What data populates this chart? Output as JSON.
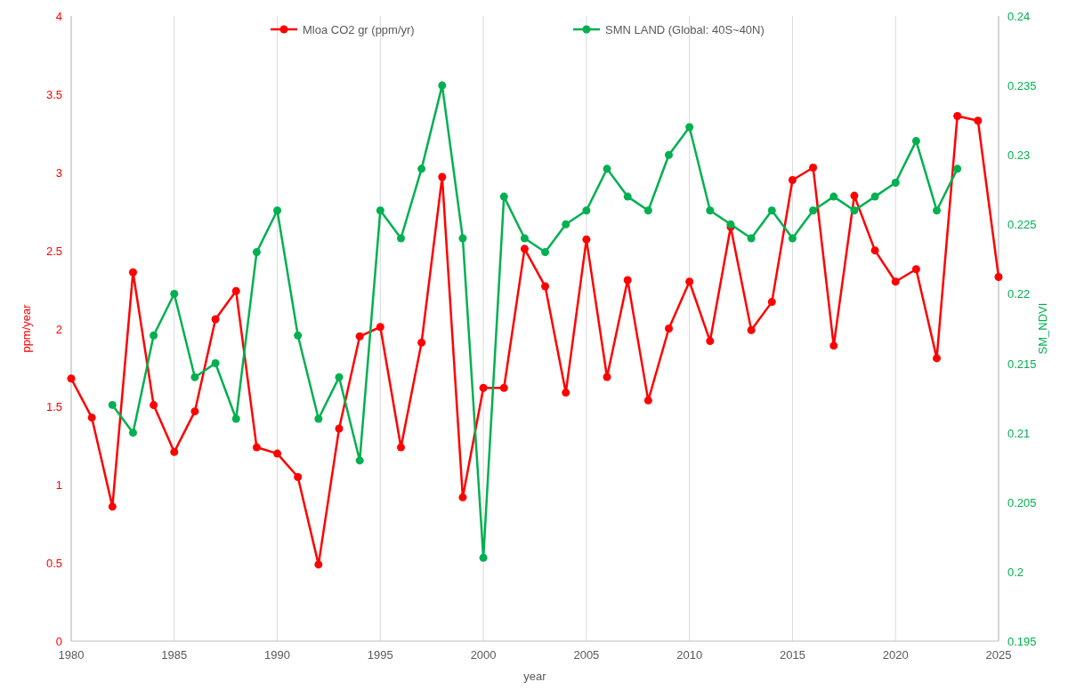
{
  "chart_data": {
    "type": "line",
    "xlabel": "year",
    "ylabel": "ppm/year",
    "y2label": "SM_NDVI",
    "xlim": [
      1980,
      2025
    ],
    "xticks": [
      1980,
      1985,
      1990,
      1995,
      2000,
      2005,
      2010,
      2015,
      2020,
      2025
    ],
    "ylim": [
      0,
      4
    ],
    "yticks": [
      0,
      0.5,
      1,
      1.5,
      2,
      2.5,
      3,
      3.5,
      4
    ],
    "y2lim": [
      0.195,
      0.24
    ],
    "y2ticks": [
      0.195,
      0.2,
      0.205,
      0.21,
      0.215,
      0.22,
      0.225,
      0.23,
      0.235,
      0.24
    ],
    "grid": "x",
    "legend": "top",
    "marker": "circle",
    "line_style": "solid",
    "series": [
      {
        "name": "Mloa CO2 gr (ppm/yr)",
        "color": "#ff0000",
        "x": [
          1980,
          1981,
          1982,
          1983,
          1984,
          1985,
          1986,
          1987,
          1988,
          1989,
          1990,
          1991,
          1992,
          1993,
          1994,
          1995,
          1996,
          1997,
          1998,
          1999,
          2000,
          2001,
          2002,
          2003,
          2004,
          2005,
          2006,
          2007,
          2008,
          2009,
          2010,
          2011,
          2012,
          2013,
          2014,
          2015,
          2016,
          2017,
          2018,
          2019,
          2020,
          2021,
          2022,
          2023,
          2024,
          2025
        ],
        "values": [
          1.68,
          1.43,
          0.86,
          2.36,
          1.51,
          1.21,
          1.47,
          2.06,
          2.24,
          1.24,
          1.2,
          1.05,
          0.49,
          1.36,
          1.95,
          2.01,
          1.24,
          1.91,
          2.97,
          0.92,
          1.62,
          1.62,
          2.51,
          2.27,
          1.59,
          2.57,
          1.69,
          2.31,
          1.54,
          2.0,
          2.3,
          1.92,
          2.65,
          1.99,
          2.17,
          2.95,
          3.03,
          1.89,
          2.85,
          2.5,
          2.3,
          2.38,
          1.81,
          3.36,
          3.33,
          2.33
        ]
      },
      {
        "name": "SMN LAND (Global: 40S~40N)",
        "color": "#00b050",
        "axis": "y2",
        "x": [
          1982,
          1983,
          1984,
          1985,
          1986,
          1987,
          1988,
          1989,
          1990,
          1991,
          1992,
          1993,
          1994,
          1995,
          1996,
          1997,
          1998,
          1999,
          2000,
          2001,
          2002,
          2003,
          2004,
          2005,
          2006,
          2007,
          2008,
          2009,
          2010,
          2011,
          2012,
          2013,
          2014,
          2015,
          2016,
          2017,
          2018,
          2019,
          2020,
          2021,
          2022,
          2023
        ],
        "values": [
          0.212,
          0.21,
          0.217,
          0.22,
          0.214,
          0.215,
          0.211,
          0.223,
          0.226,
          0.217,
          0.211,
          0.214,
          0.208,
          0.226,
          0.224,
          0.229,
          0.235,
          0.224,
          0.201,
          0.227,
          0.224,
          0.223,
          0.225,
          0.226,
          0.229,
          0.227,
          0.226,
          0.23,
          0.232,
          0.226,
          0.225,
          0.224,
          0.226,
          0.224,
          0.226,
          0.227,
          0.226,
          0.227,
          0.228,
          0.231,
          0.226,
          0.229
        ]
      }
    ]
  }
}
